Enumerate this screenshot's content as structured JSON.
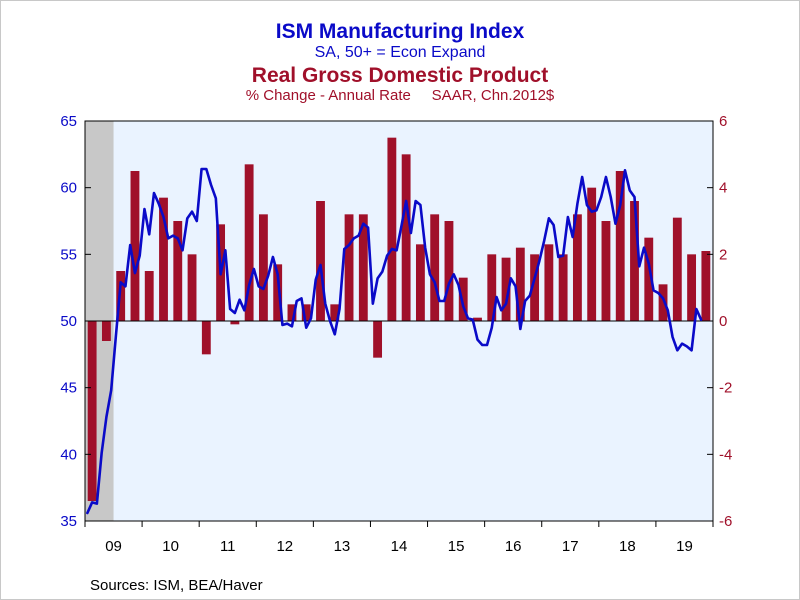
{
  "header": {
    "ism_title": "ISM Manufacturing Index",
    "ism_subtitle": "SA, 50+ = Econ Expand",
    "gdp_title": "Real Gross Domestic Product",
    "gdp_subtitle": "% Change - Annual Rate     SAAR, Chn.2012$"
  },
  "colors": {
    "ism": "#0a0ac8",
    "gdp": "#a0102a",
    "plot_bg": "#eaf3ff",
    "recession": "#c8c8c8"
  },
  "source": "Sources:  ISM, BEA/Haver",
  "chart_data": {
    "type": "bar+line",
    "x_tick_labels": [
      "09",
      "10",
      "11",
      "12",
      "13",
      "14",
      "15",
      "16",
      "17",
      "18",
      "19"
    ],
    "left_axis": {
      "ylim": [
        35,
        65
      ],
      "ticks": [
        35,
        40,
        45,
        50,
        55,
        60,
        65
      ],
      "series_name": "ISM Manufacturing Index"
    },
    "right_axis": {
      "ylim": [
        -6,
        6
      ],
      "ticks": [
        -6,
        -4,
        -2,
        0,
        2,
        4,
        6
      ],
      "series_name": "Real Gross Domestic Product"
    },
    "recession_shading": {
      "start": "2009-01",
      "end": "2009-06"
    },
    "gdp_quarterly": {
      "quarters": [
        "2009Q1",
        "2009Q2",
        "2009Q3",
        "2009Q4",
        "2010Q1",
        "2010Q2",
        "2010Q3",
        "2010Q4",
        "2011Q1",
        "2011Q2",
        "2011Q3",
        "2011Q4",
        "2012Q1",
        "2012Q2",
        "2012Q3",
        "2012Q4",
        "2013Q1",
        "2013Q2",
        "2013Q3",
        "2013Q4",
        "2014Q1",
        "2014Q2",
        "2014Q3",
        "2014Q4",
        "2015Q1",
        "2015Q2",
        "2015Q3",
        "2015Q4",
        "2016Q1",
        "2016Q2",
        "2016Q3",
        "2016Q4",
        "2017Q1",
        "2017Q2",
        "2017Q3",
        "2017Q4",
        "2018Q1",
        "2018Q2",
        "2018Q3",
        "2018Q4",
        "2019Q1",
        "2019Q2",
        "2019Q3",
        "2019Q4"
      ],
      "values": [
        -5.4,
        -0.6,
        1.5,
        4.5,
        1.5,
        3.7,
        3.0,
        2.0,
        -1.0,
        2.9,
        -0.1,
        4.7,
        3.2,
        1.7,
        0.5,
        0.5,
        3.6,
        0.5,
        3.2,
        3.2,
        -1.1,
        5.5,
        5.0,
        2.3,
        3.2,
        3.0,
        1.3,
        0.1,
        2.0,
        1.9,
        2.2,
        2.0,
        2.3,
        2.0,
        3.2,
        4.0,
        3.0,
        4.5,
        3.6,
        2.5,
        1.1,
        3.1,
        2.0,
        2.1
      ]
    },
    "ism_monthly": {
      "start": "2009-01",
      "values": [
        35.6,
        36.4,
        36.3,
        40.1,
        42.8,
        44.8,
        48.9,
        52.9,
        52.6,
        55.7,
        53.6,
        54.9,
        58.4,
        56.5,
        59.6,
        58.8,
        57.8,
        56.2,
        56.4,
        56.2,
        55.3,
        57.7,
        58.2,
        57.5,
        61.4,
        61.4,
        60.2,
        59.2,
        53.5,
        55.3,
        50.9,
        50.6,
        51.6,
        50.8,
        52.7,
        53.9,
        52.6,
        52.4,
        53.4,
        54.8,
        53.5,
        49.7,
        49.8,
        49.6,
        51.5,
        51.7,
        49.5,
        50.2,
        53.1,
        54.2,
        51.3,
        50.0,
        49.0,
        50.9,
        55.4,
        55.7,
        56.2,
        56.4,
        57.3,
        57.0,
        51.3,
        53.2,
        53.7,
        54.9,
        55.4,
        55.3,
        57.1,
        59.0,
        56.6,
        59.0,
        58.7,
        55.5,
        53.5,
        52.9,
        51.5,
        51.5,
        52.8,
        53.5,
        52.7,
        51.1,
        50.2,
        50.1,
        48.6,
        48.2,
        48.2,
        49.5,
        51.8,
        50.8,
        51.3,
        53.2,
        52.6,
        49.4,
        51.5,
        51.9,
        53.2,
        54.5,
        56.0,
        57.7,
        57.2,
        54.8,
        54.9,
        57.8,
        56.3,
        58.8,
        60.8,
        58.7,
        58.2,
        58.3,
        59.3,
        60.8,
        59.3,
        57.3,
        58.7,
        61.3,
        59.8,
        59.3,
        54.1,
        55.5,
        54.3,
        52.3,
        52.1,
        51.7,
        50.8,
        48.8,
        47.8,
        48.3,
        48.1,
        47.8,
        50.9,
        50.1
      ]
    }
  }
}
